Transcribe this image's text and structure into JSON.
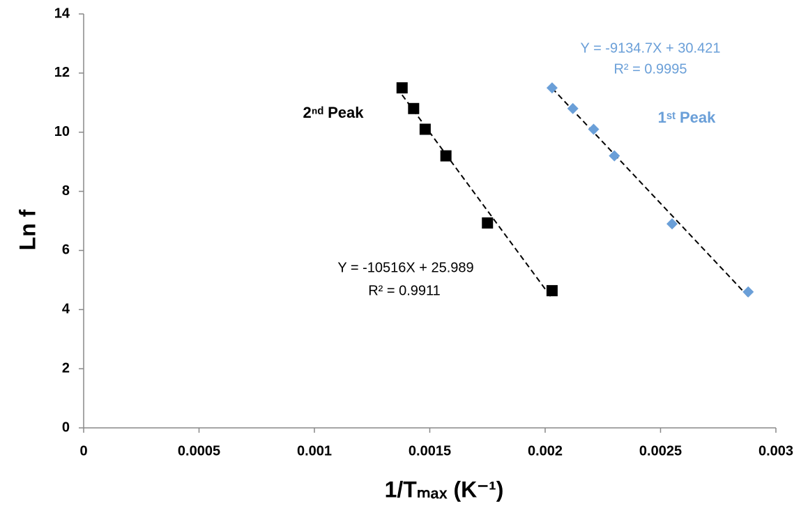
{
  "chart_data": {
    "type": "scatter",
    "x_label": "1/Tₘₐₓ (K⁻¹)",
    "y_label": "Ln f",
    "xlim": [
      0,
      0.003
    ],
    "xticks": [
      0,
      0.0005,
      0.001,
      0.0015,
      0.002,
      0.0025,
      0.003
    ],
    "ylim": [
      0,
      14
    ],
    "yticks": [
      0,
      2,
      4,
      6,
      8,
      10,
      12,
      14
    ],
    "trendline": true,
    "series": [
      {
        "name": "1ˢᵗ Peak",
        "color": "#6a9fd8",
        "marker": "diamond",
        "x": [
          0.00203,
          0.00212,
          0.00221,
          0.0023,
          0.00255,
          0.00288
        ],
        "values": [
          11.5,
          10.8,
          10.1,
          9.2,
          6.9,
          4.6
        ]
      },
      {
        "name": "2ⁿᵈ Peak",
        "color": "#000000",
        "marker": "square",
        "x": [
          0.00138,
          0.00143,
          0.00148,
          0.00157,
          0.00175,
          0.00203
        ],
        "values": [
          11.5,
          10.8,
          10.1,
          9.2,
          6.93,
          4.64
        ]
      }
    ],
    "annotations": [
      "Y = -9134.7X + 30.421",
      "R² = 0.9995",
      "Y = -10516X + 25.989",
      "R² = 0.9911"
    ]
  }
}
